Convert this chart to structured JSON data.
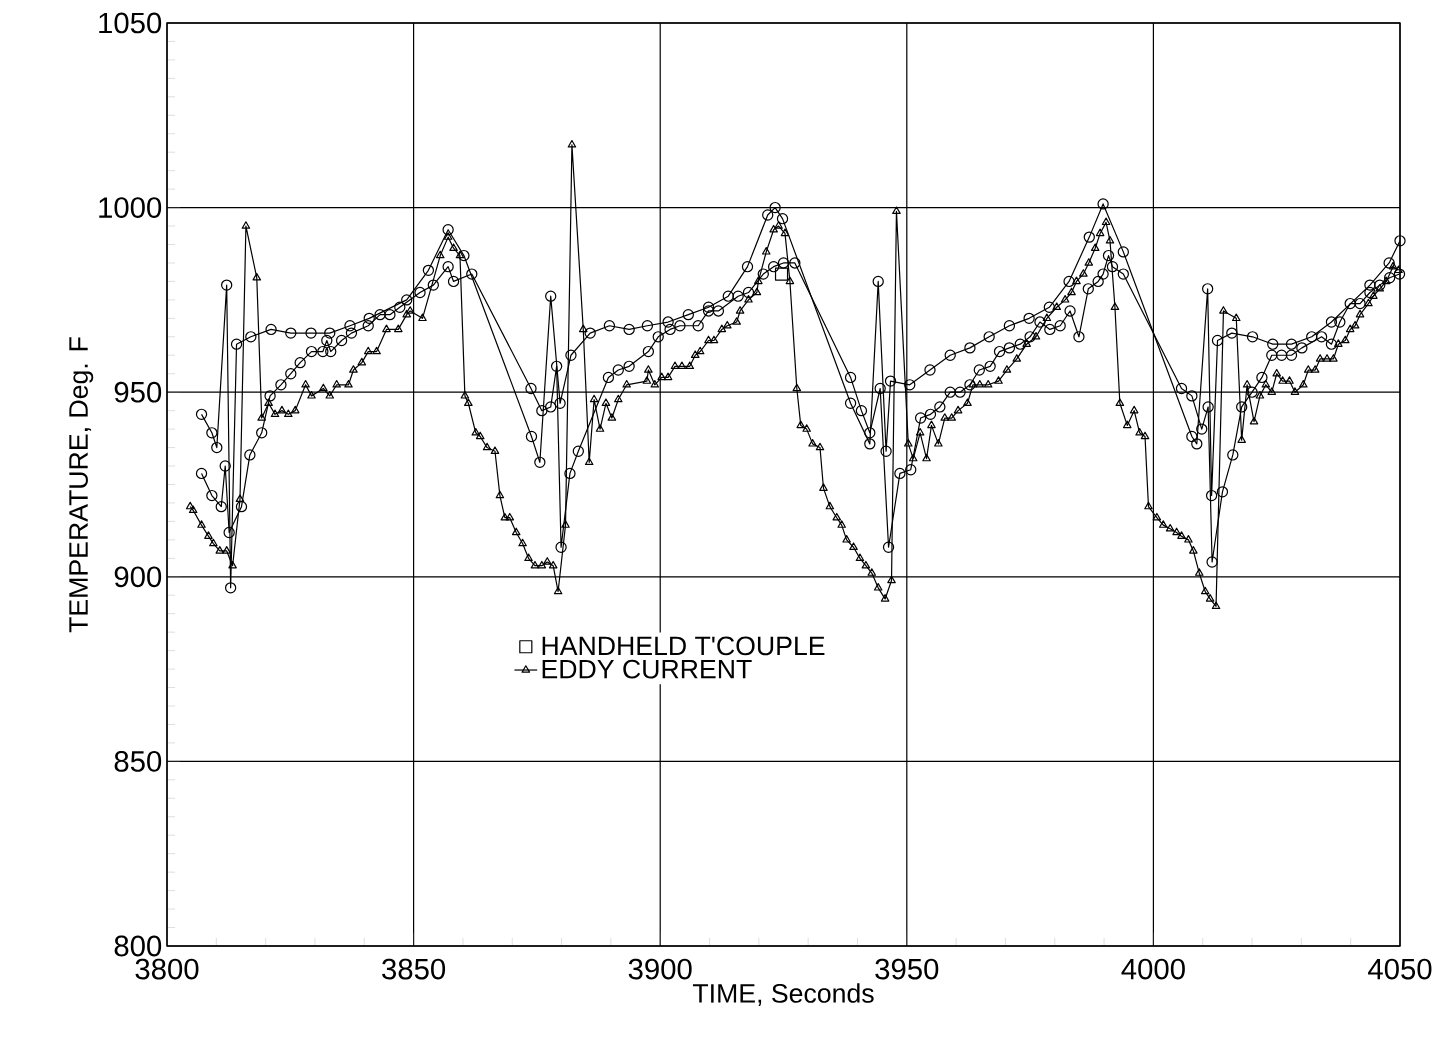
{
  "chart_data": {
    "type": "line",
    "xlabel": "TIME, Seconds",
    "ylabel": "TEMPERATURE, Deg. F",
    "xlim": [
      3800,
      4050
    ],
    "xticks": [
      3800,
      3850,
      3900,
      3950,
      4000,
      4050
    ],
    "ylim": [
      800,
      1050
    ],
    "yticks": [
      800,
      850,
      900,
      950,
      1000,
      1050
    ],
    "grid": true,
    "legend": "bottom",
    "series": [
      {
        "color": "#000000",
        "marker": "circle",
        "x": [
          3807.0,
          3809.1,
          3810.1,
          3812.1,
          3812.9,
          3814.1,
          3817.0,
          3821.1,
          3825.1,
          3829.2,
          3833.0,
          3837.1,
          3841.0,
          3848.6,
          3853.0,
          3857.0,
          3860.2,
          3873.9,
          3875.6,
          3877.8,
          3879.7,
          3881.9,
          3885.8,
          3889.7,
          3893.7,
          3897.4,
          3901.6,
          3905.7,
          3909.8,
          3913.8,
          3917.7,
          3921.8,
          3923.3,
          3924.8,
          3938.6,
          3942.5,
          3944.2,
          3945.8,
          3946.7,
          3950.6,
          3954.7,
          3958.8,
          3962.8,
          3966.7,
          3970.8,
          3974.8,
          3978.9,
          3982.9,
          3987.0,
          3989.8,
          3993.9,
          4007.8,
          4008.8,
          4011.0,
          4011.8,
          4013.0,
          4015.9,
          4020.1,
          4024.2,
          4028.0,
          4032.1,
          4036.1,
          4043.9,
          4047.8,
          4050.0
        ],
        "values": [
          944,
          939,
          935,
          979,
          897,
          963,
          965,
          967,
          966,
          966,
          966,
          968,
          970,
          975,
          983,
          994,
          987,
          938,
          931,
          976,
          947,
          960,
          966,
          968,
          967,
          968,
          969,
          971,
          973,
          976,
          984,
          998,
          1000,
          997,
          947,
          936,
          980,
          934,
          953,
          952,
          956,
          960,
          962,
          965,
          968,
          970,
          973,
          980,
          992,
          1001,
          988,
          938,
          936,
          978,
          922,
          964,
          966,
          965,
          963,
          963,
          965,
          969,
          979,
          985,
          991
        ]
      },
      {
        "color": "#000000",
        "marker": "circle",
        "x": [
          3807.0,
          3809.1,
          3811.0,
          3811.8,
          3812.6,
          3815.1,
          3816.8,
          3819.2,
          3820.9,
          3823.1,
          3825.1,
          3827.0,
          3829.3,
          3831.6,
          3832.4,
          3833.2,
          3835.4,
          3837.4,
          3840.8,
          3843.2,
          3845.2,
          3847.2,
          3851.3,
          3854.0,
          3857.0,
          3858.1,
          3861.8,
          3873.8,
          3876.0,
          3877.8,
          3879.0,
          3879.9,
          3881.7,
          3883.4,
          3889.5,
          3891.5,
          3893.7,
          3897.6,
          3899.6,
          3902.0,
          3904.0,
          3907.7,
          3909.8,
          3911.8,
          3915.8,
          3917.9,
          3920.9,
          3923.0,
          3925.0,
          3927.3,
          3938.6,
          3940.8,
          3942.5,
          3944.6,
          3946.3,
          3948.6,
          3950.8,
          3952.8,
          3954.8,
          3956.7,
          3958.8,
          3960.8,
          3962.8,
          3964.7,
          3966.9,
          3968.8,
          3970.8,
          3973.0,
          3975.0,
          3977.0,
          3979.0,
          3981.1,
          3983.1,
          3984.9,
          3986.8,
          3988.8,
          3989.8,
          3990.9,
          3991.7,
          3993.9,
          4005.7,
          4007.8,
          4009.8,
          4011.1,
          4011.9,
          4014.0,
          4016.1,
          4017.9,
          4020.0,
          4022.0,
          4024.0,
          4026.0,
          4028.0,
          4030.1,
          4034.1,
          4036.1,
          4037.8,
          4039.9,
          4041.9,
          4043.9,
          4045.9,
          4047.9,
          4049.9
        ],
        "values": [
          928,
          922,
          919,
          930,
          912,
          919,
          933,
          939,
          949,
          952,
          955,
          958,
          961,
          961,
          964,
          961,
          964,
          966,
          968,
          971,
          971,
          973,
          977,
          979,
          984,
          980,
          982,
          951,
          945,
          946,
          957,
          908,
          928,
          934,
          954,
          956,
          957,
          961,
          965,
          967,
          968,
          968,
          972,
          972,
          976,
          977,
          982,
          984,
          985,
          985,
          954,
          945,
          939,
          951,
          908,
          928,
          929,
          943,
          944,
          946,
          950,
          950,
          952,
          956,
          957,
          961,
          962,
          963,
          965,
          969,
          967,
          968,
          972,
          965,
          978,
          980,
          982,
          987,
          984,
          982,
          951,
          949,
          940,
          946,
          904,
          923,
          933,
          946,
          950,
          954,
          960,
          960,
          960,
          962,
          965,
          963,
          969,
          974,
          974,
          977,
          979,
          981,
          982
        ]
      },
      {
        "name": "HANDHELD T'COUPLE",
        "color": "#000000",
        "marker": "square",
        "line_style": "none",
        "x": [
          3924.6
        ],
        "values": [
          982
        ]
      },
      {
        "name": "EDDY CURRENT",
        "color": "#000000",
        "marker": "triangle",
        "x": [
          3804.7,
          3805.3,
          3807.0,
          3808.4,
          3809.4,
          3810.7,
          3812.1,
          3813.3,
          3814.8,
          3816.0,
          3818.2,
          3819.2,
          3820.6,
          3821.9,
          3823.3,
          3824.6,
          3826.0,
          3828.1,
          3829.3,
          3831.7,
          3833.0,
          3834.4,
          3836.8,
          3837.8,
          3839.5,
          3840.8,
          3842.5,
          3844.5,
          3846.9,
          3848.6,
          3849.3,
          3851.8,
          3855.4,
          3857.0,
          3858.1,
          3859.4,
          3860.4,
          3861.1,
          3862.6,
          3863.5,
          3864.9,
          3866.5,
          3867.5,
          3868.5,
          3869.5,
          3870.8,
          3872.1,
          3873.3,
          3874.6,
          3876.0,
          3877.1,
          3878.3,
          3879.3,
          3880.8,
          3882.1,
          3884.4,
          3885.6,
          3886.6,
          3887.8,
          3889.0,
          3890.2,
          3891.5,
          3893.2,
          3897.3,
          3897.6,
          3898.9,
          3900.3,
          3901.6,
          3903.0,
          3904.4,
          3906.0,
          3907.1,
          3908.1,
          3909.8,
          3910.9,
          3912.5,
          3913.6,
          3915.5,
          3916.2,
          3917.9,
          3919.6,
          3919.9,
          3921.5,
          3923.0,
          3924.0,
          3925.3,
          3926.3,
          3927.7,
          3928.5,
          3929.7,
          3930.9,
          3932.4,
          3933.1,
          3934.4,
          3935.8,
          3936.8,
          3937.8,
          3939.2,
          3940.5,
          3941.7,
          3942.9,
          3944.2,
          3945.6,
          3946.9,
          3947.9,
          3950.3,
          3951.3,
          3952.7,
          3954.0,
          3955.0,
          3956.4,
          3957.7,
          3959.1,
          3960.4,
          3962.3,
          3963.4,
          3964.8,
          3966.5,
          3968.6,
          3970.3,
          3972.3,
          3974.3,
          3976.2,
          3978.4,
          3980.4,
          3982.1,
          3983.4,
          3984.4,
          3985.8,
          3986.9,
          3988.2,
          3989.2,
          3990.4,
          3991.2,
          3992.2,
          3993.2,
          3994.7,
          3996.1,
          3997.2,
          3998.3,
          3999.0,
          4000.7,
          4002.0,
          4003.4,
          4004.7,
          4005.7,
          4007.1,
          4008.1,
          4009.3,
          4010.5,
          4011.5,
          4012.7,
          4014.2,
          4016.8,
          4017.9,
          4019.0,
          4020.4,
          4021.6,
          4022.8,
          4024.0,
          4025.0,
          4026.2,
          4027.6,
          4028.7,
          4030.4,
          4031.4,
          4032.8,
          4033.8,
          4035.2,
          4036.5,
          4037.5,
          4038.9,
          4039.9,
          4040.9,
          4041.9,
          4043.6,
          4044.6,
          4045.9,
          4047.2,
          4048.6,
          4049.7
        ],
        "values": [
          919,
          918,
          914,
          911,
          909,
          907,
          907,
          903,
          921,
          995,
          981,
          943,
          947,
          944,
          945,
          944,
          945,
          952,
          949,
          951,
          949,
          952,
          952,
          956,
          958,
          961,
          961,
          967,
          967,
          971,
          972,
          970,
          987,
          992,
          989,
          987,
          949,
          947,
          939,
          938,
          935,
          934,
          922,
          916,
          916,
          912,
          909,
          905,
          903,
          903,
          904,
          903,
          896,
          914,
          1017,
          967,
          931,
          948,
          940,
          947,
          943,
          948,
          952,
          953,
          956,
          952,
          954,
          954,
          957,
          957,
          957,
          960,
          961,
          964,
          964,
          967,
          968,
          969,
          972,
          975,
          977,
          980,
          988,
          994,
          995,
          993,
          980,
          951,
          941,
          940,
          936,
          935,
          924,
          919,
          916,
          914,
          910,
          908,
          905,
          903,
          901,
          897,
          894,
          899,
          999,
          936,
          932,
          939,
          932,
          941,
          936,
          943,
          943,
          945,
          947,
          952,
          952,
          952,
          953,
          956,
          959,
          963,
          965,
          970,
          973,
          975,
          977,
          980,
          982,
          985,
          989,
          993,
          996,
          991,
          973,
          947,
          941,
          945,
          939,
          938,
          919,
          916,
          914,
          913,
          912,
          911,
          910,
          907,
          901,
          896,
          894,
          892,
          972,
          970,
          937,
          952,
          942,
          949,
          952,
          950,
          955,
          953,
          953,
          950,
          952,
          956,
          956,
          959,
          959,
          959,
          963,
          964,
          967,
          968,
          971,
          974,
          976,
          978,
          980,
          984,
          983
        ]
      }
    ]
  }
}
